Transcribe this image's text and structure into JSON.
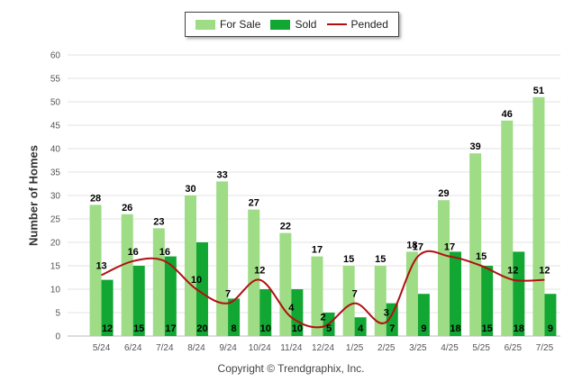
{
  "chart_data": {
    "type": "bar",
    "title": "",
    "ylabel": "Number of Homes",
    "xlabel": "",
    "ylim": [
      0,
      60
    ],
    "yticks": [
      0,
      5,
      10,
      15,
      20,
      25,
      30,
      35,
      40,
      45,
      50,
      55,
      60
    ],
    "grid": true,
    "legend_position": "top-center",
    "categories": [
      "5/24",
      "6/24",
      "7/24",
      "8/24",
      "9/24",
      "10/24",
      "11/24",
      "12/24",
      "1/25",
      "2/25",
      "3/25",
      "4/25",
      "5/25",
      "6/25",
      "7/25"
    ],
    "series": [
      {
        "name": "For Sale",
        "kind": "bar",
        "color": "#9edc86",
        "values": [
          28,
          26,
          23,
          30,
          33,
          27,
          22,
          17,
          15,
          15,
          18,
          29,
          39,
          46,
          51
        ]
      },
      {
        "name": "Sold",
        "kind": "bar",
        "color": "#12a632",
        "values": [
          12,
          15,
          17,
          20,
          8,
          10,
          10,
          5,
          4,
          7,
          9,
          18,
          15,
          18,
          9
        ]
      },
      {
        "name": "Pended",
        "kind": "line",
        "color": "#b01010",
        "values": [
          13,
          16,
          16,
          10,
          7,
          12,
          4,
          2,
          7,
          3,
          17,
          17,
          15,
          12,
          12
        ]
      }
    ]
  },
  "copyright": "Copyright © Trendgraphix, Inc."
}
